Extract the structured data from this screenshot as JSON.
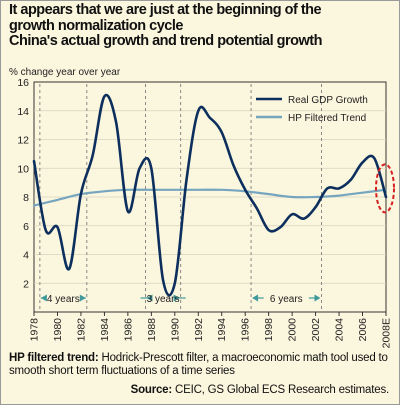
{
  "title": {
    "line1": "It appears that we are just at the beginning of the",
    "line2": "growth normalization cycle",
    "line3": "China's actual growth and trend potential growth"
  },
  "colors": {
    "background": "#fbf6de",
    "real_gdp": "#0c2f5e",
    "hp_trend": "#76a5c0",
    "annotation": "#3f9a9c",
    "highlight": "#d32020"
  },
  "chart_data": {
    "type": "line",
    "ylabel": "% change year over year",
    "ylim": [
      0,
      16
    ],
    "yticks": [
      "16",
      "14",
      "12",
      "10",
      "8",
      "6",
      "4",
      "2"
    ],
    "ytick_values": [
      16,
      14,
      12,
      10,
      8,
      6,
      4,
      2
    ],
    "xlim": [
      1978,
      2008
    ],
    "xticks": [
      "1978",
      "1980",
      "1982",
      "1984",
      "1986",
      "1988",
      "1990",
      "1992",
      "1994",
      "1996",
      "1998",
      "2000",
      "2002",
      "2004",
      "2006",
      "2008E"
    ],
    "xtick_values": [
      1978,
      1980,
      1982,
      1984,
      1986,
      1988,
      1990,
      1992,
      1994,
      1996,
      1998,
      2000,
      2002,
      2004,
      2006,
      2008
    ],
    "grid": true,
    "legend": "top-right",
    "series": [
      {
        "name": "Real GDP Growth",
        "x": [
          1978,
          1979,
          1980,
          1981,
          1982,
          1983,
          1984,
          1985,
          1986,
          1987,
          1988,
          1989,
          1990,
          1991,
          1992,
          1993,
          1994,
          1995,
          1996,
          1997,
          1998,
          1999,
          2000,
          2001,
          2002,
          2003,
          2004,
          2005,
          2006,
          2007,
          2008
        ],
        "y": [
          10.5,
          5.7,
          5.9,
          3.0,
          8.2,
          10.9,
          15.0,
          13.2,
          7.0,
          10.0,
          10.0,
          2.2,
          2.0,
          9.2,
          14.0,
          13.5,
          12.5,
          10.2,
          8.5,
          7.2,
          5.7,
          5.9,
          6.8,
          6.5,
          7.3,
          8.6,
          8.6,
          9.2,
          10.4,
          10.7,
          8.0
        ]
      },
      {
        "name": "HP Filtered Trend",
        "x": [
          1978,
          1980,
          1982,
          1984,
          1986,
          1988,
          1990,
          1992,
          1994,
          1996,
          1998,
          2000,
          2002,
          2004,
          2006,
          2008
        ],
        "y": [
          7.4,
          7.8,
          8.2,
          8.4,
          8.5,
          8.5,
          8.5,
          8.5,
          8.5,
          8.4,
          8.2,
          8.0,
          8.0,
          8.1,
          8.3,
          8.5
        ]
      }
    ],
    "annotations": [
      {
        "label": "4 years",
        "x_start": 1978.5,
        "x_end": 1982.5
      },
      {
        "label": "3 years",
        "x_start": 1987.5,
        "x_end": 1990.5
      },
      {
        "label": "6 years",
        "x_start": 1996.5,
        "x_end": 2002.5
      }
    ],
    "vlines": [
      1978.5,
      1982.5,
      1987.5,
      1990.5,
      1996.5,
      2002.5
    ],
    "highlight_x": 2008
  },
  "footnote": {
    "label": "HP filtered trend:",
    "text": " Hodrick-Prescott filter, a macroeconomic math tool used to smooth short term fluctuations of a time series"
  },
  "source": {
    "label": "Source:",
    "text": " CEIC, GS Global ECS Research estimates."
  }
}
